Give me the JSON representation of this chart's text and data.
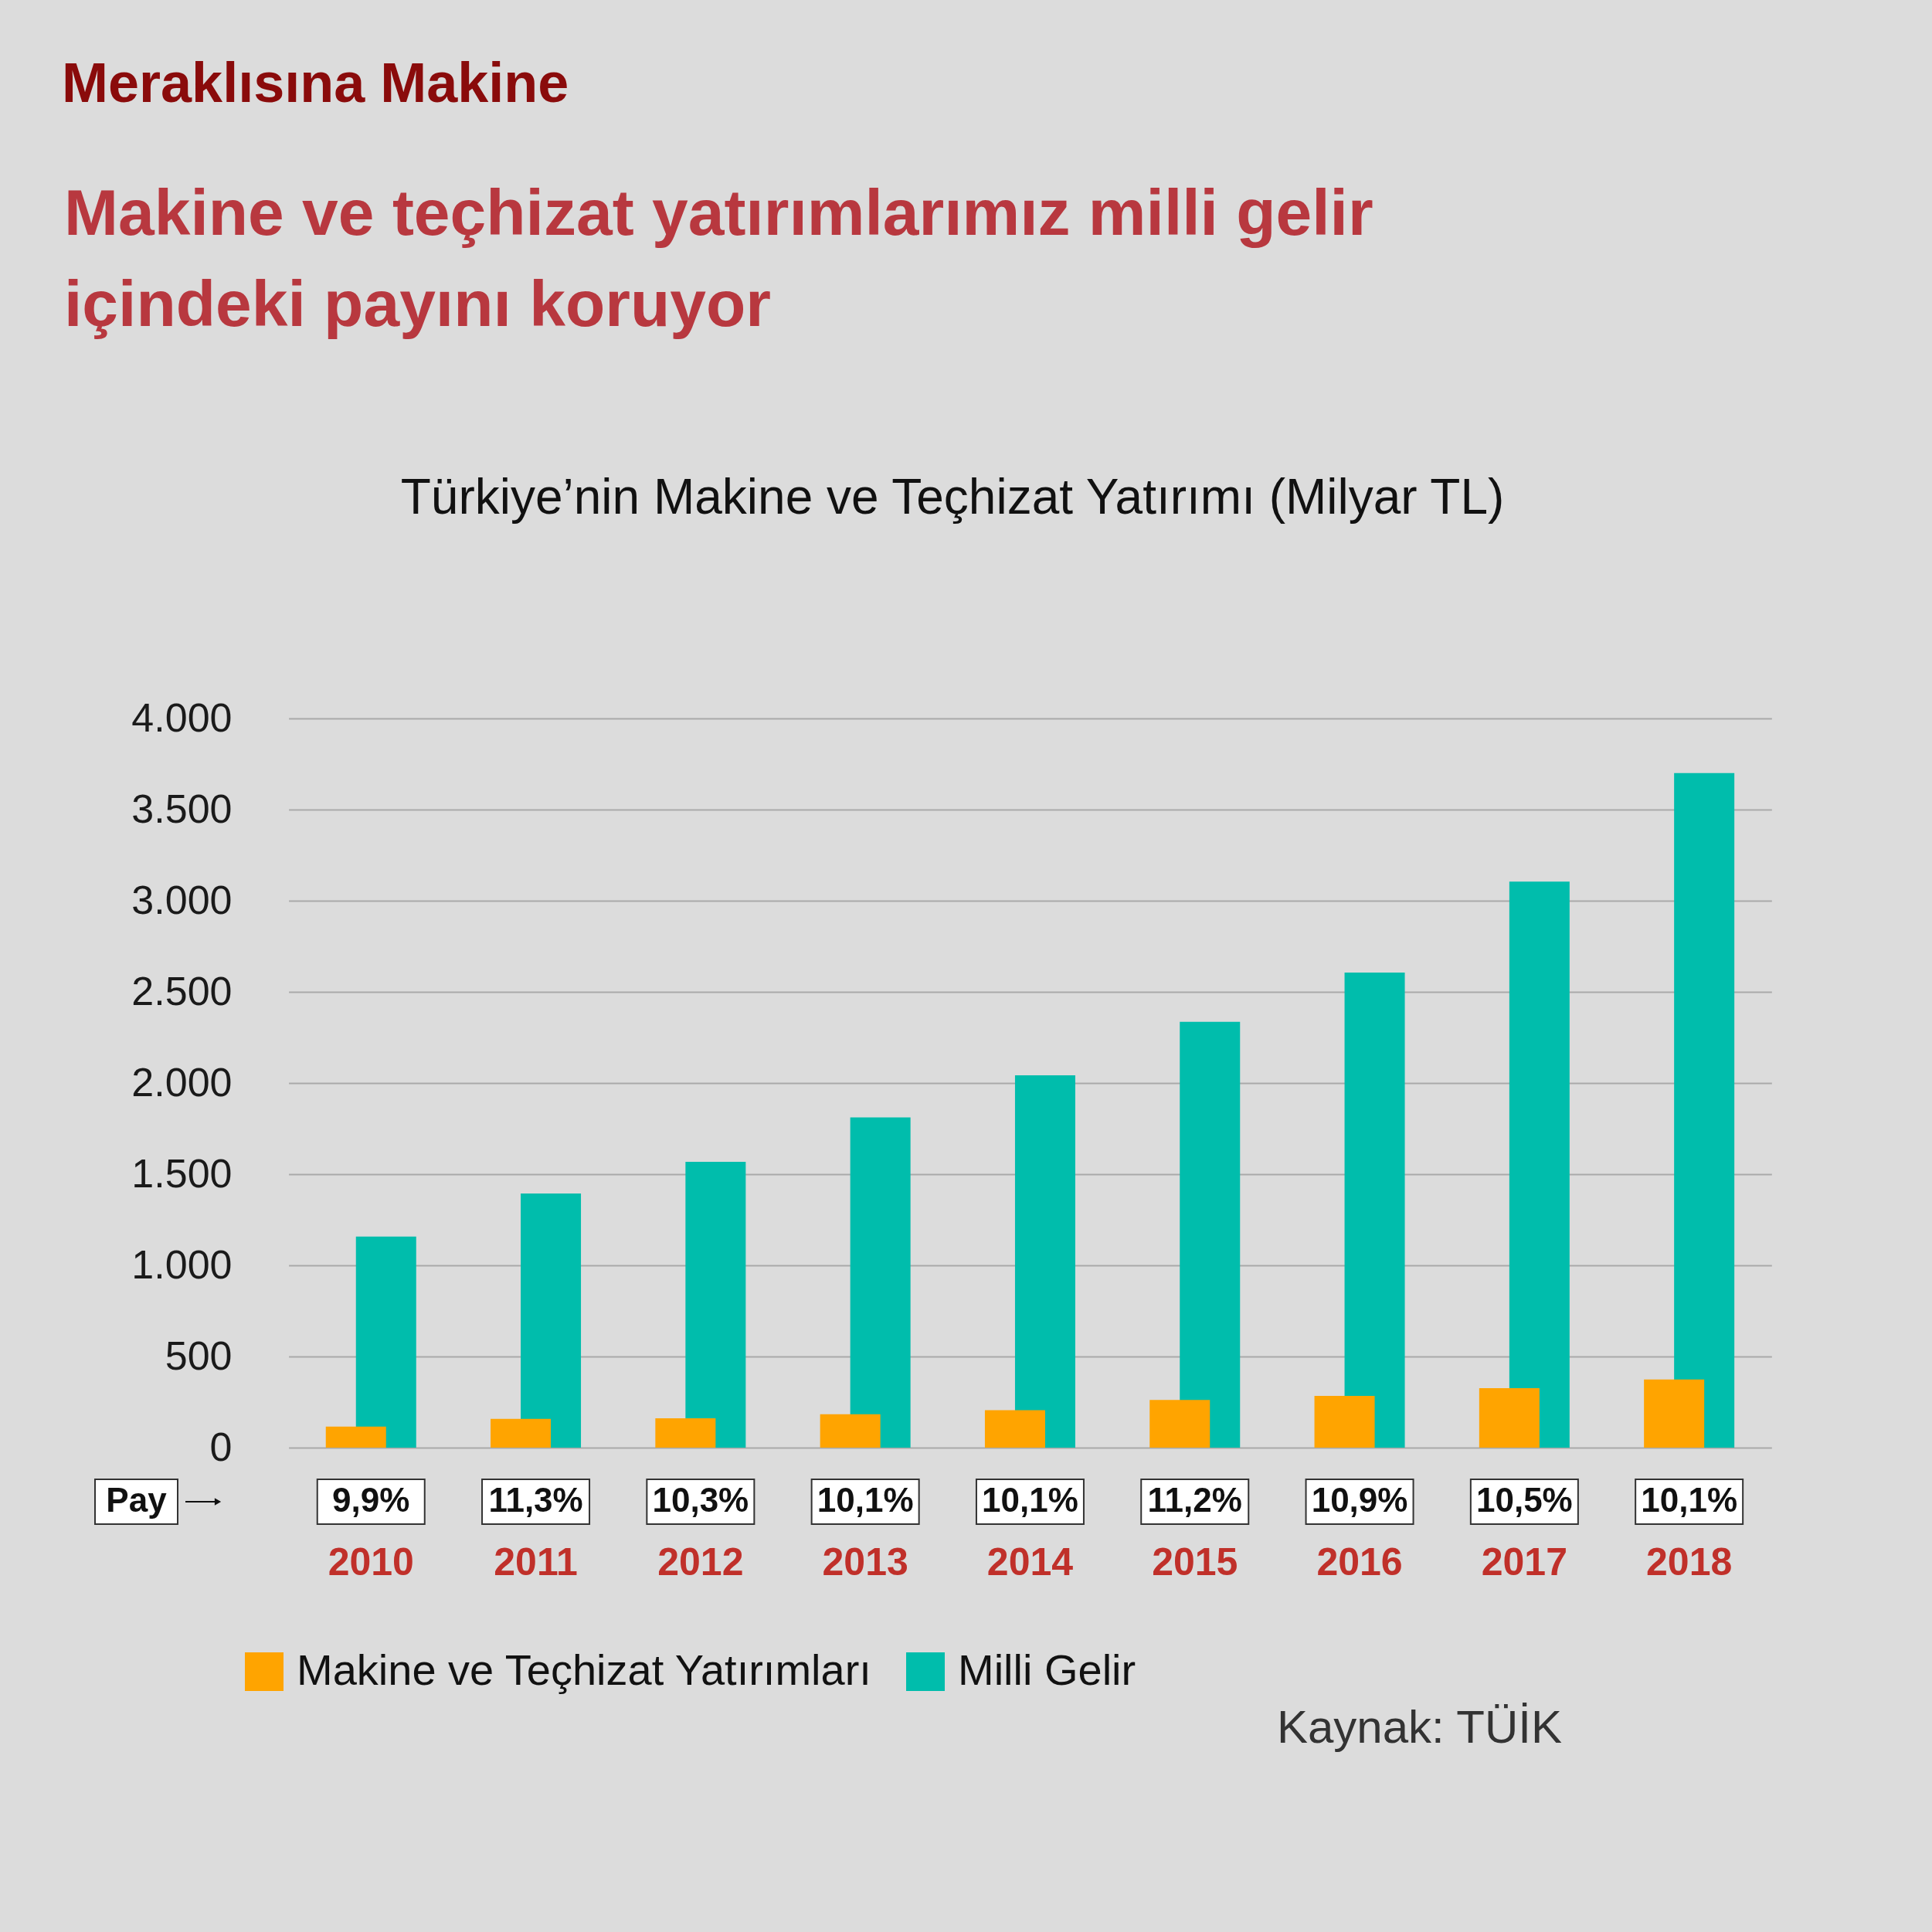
{
  "chart_data": {
    "type": "bar",
    "title": "Makine ve teçhizat yatırımlarımız milli gelir içindeki payını koruyor",
    "subtitle": "Türkiye’nin Makine ve Teçhizat Yatırımı (Milyar TL)",
    "categories": [
      "2010",
      "2011",
      "2012",
      "2013",
      "2014",
      "2015",
      "2016",
      "2017",
      "2018"
    ],
    "series": [
      {
        "name": "Makine ve Teçhizat Yatırımları",
        "color": "#ffa400",
        "values": [
          115,
          158,
          161,
          183,
          206,
          262,
          284,
          326,
          374
        ]
      },
      {
        "name": "Milli Gelir",
        "color": "#00bdac",
        "values": [
          1158,
          1394,
          1568,
          1811,
          2042,
          2336,
          2606,
          3105,
          3700
        ]
      }
    ],
    "ylim": [
      0,
      4000
    ],
    "yticks": [
      0,
      500,
      {
        "value": 1000,
        "label": "1.000"
      },
      {
        "value": 1500,
        "label": "1.500"
      },
      {
        "value": 2000,
        "label": "2.000"
      },
      {
        "value": 2500,
        "label": "2.500"
      },
      {
        "value": 3000,
        "label": "3.000"
      },
      {
        "value": 3500,
        "label": "3.500"
      },
      {
        "value": 4000,
        "label": "4.000"
      }
    ],
    "grid": "y",
    "legend": "bottom left",
    "annotations": [
      "Meraklısına Makine",
      "Pay",
      "9,9%",
      "11,3%",
      "10,3%",
      "10,1%",
      "10,1%",
      "11,2%",
      "10,9%",
      "10,5%",
      "10,1%",
      "Kaynak: TÜİK"
    ]
  }
}
